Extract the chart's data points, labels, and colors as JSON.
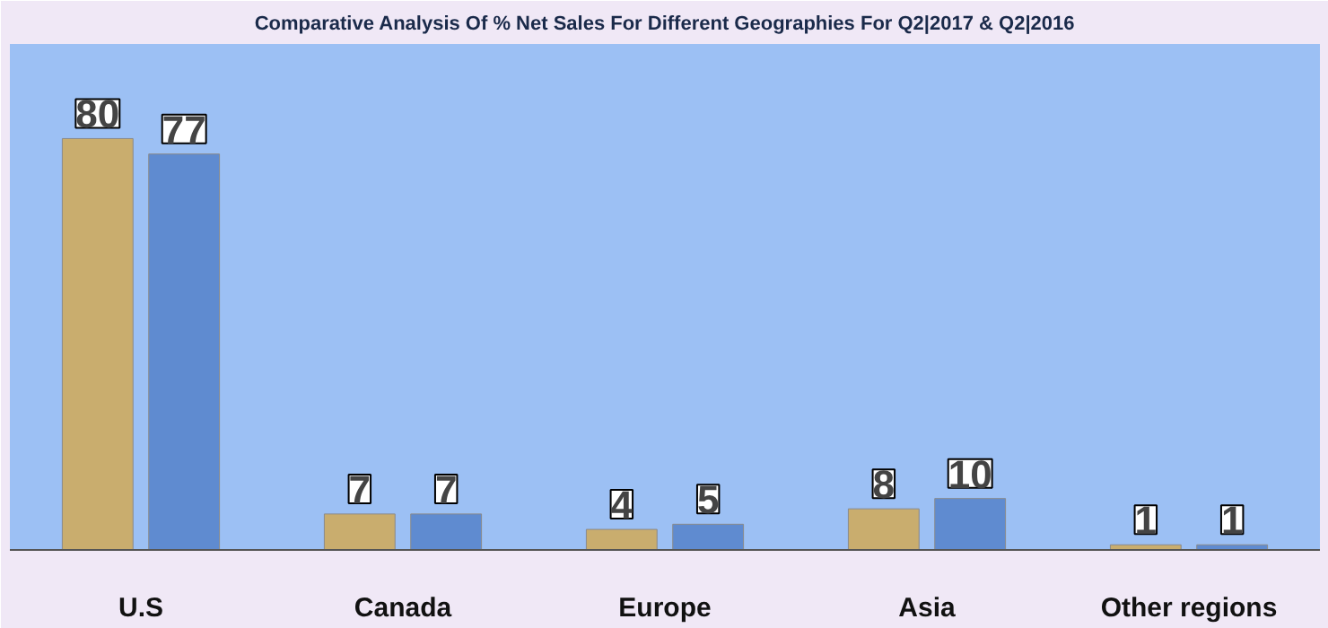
{
  "chart_data": {
    "type": "bar",
    "title": "Comparative Analysis Of % Net Sales For Different Geographies For Q2|2017 & Q2|2016",
    "categories": [
      "U.S",
      "Canada",
      "Europe",
      "Asia",
      "Other regions"
    ],
    "series": [
      {
        "color": "#c9ad6e",
        "values": [
          80,
          7,
          4,
          8,
          1
        ]
      },
      {
        "color": "#5f8bd0",
        "values": [
          77,
          7,
          5,
          10,
          1
        ]
      }
    ],
    "data_labels": true,
    "tick_labels": "x"
  }
}
